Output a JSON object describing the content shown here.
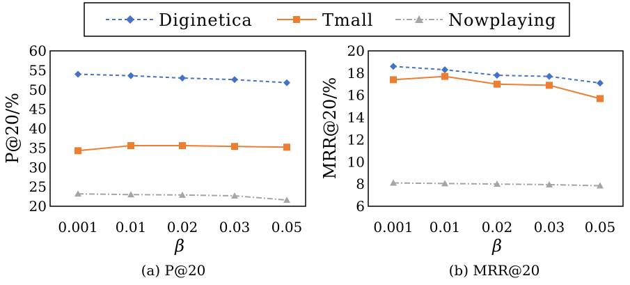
{
  "colors": {
    "diginetica": "#4472C4",
    "tmall": "#ED7D31",
    "nowplaying": "#A5A5A5"
  },
  "legend": {
    "items": [
      "Diginetica",
      "Tmall",
      "Nowplaying"
    ],
    "placement": "top-center"
  },
  "chart_data": [
    {
      "type": "line",
      "subtitle": "(a) P@20",
      "xlabel": "β",
      "ylabel": "P@20/%",
      "categories": [
        "0.001",
        "0.01",
        "0.02",
        "0.03",
        "0.05"
      ],
      "ylim": [
        20,
        60
      ],
      "yticks": [
        "20",
        "25",
        "30",
        "35",
        "40",
        "45",
        "50",
        "55",
        "60"
      ],
      "grid": false,
      "series": [
        {
          "name": "Diginetica",
          "values": [
            54.0,
            53.6,
            53.0,
            52.6,
            51.8
          ]
        },
        {
          "name": "Tmall",
          "values": [
            34.3,
            35.6,
            35.6,
            35.4,
            35.2
          ]
        },
        {
          "name": "Nowplaying",
          "values": [
            23.2,
            23.0,
            22.9,
            22.7,
            21.6
          ]
        }
      ]
    },
    {
      "type": "line",
      "subtitle": "(b) MRR@20",
      "xlabel": "β",
      "ylabel": "MRR@20/%",
      "categories": [
        "0.001",
        "0.01",
        "0.02",
        "0.03",
        "0.05"
      ],
      "ylim": [
        6,
        20
      ],
      "yticks": [
        "6",
        "8",
        "10",
        "12",
        "14",
        "16",
        "18",
        "20"
      ],
      "grid": false,
      "series": [
        {
          "name": "Diginetica",
          "values": [
            18.6,
            18.3,
            17.8,
            17.7,
            17.1
          ]
        },
        {
          "name": "Tmall",
          "values": [
            17.4,
            17.7,
            17.0,
            16.9,
            15.7
          ]
        },
        {
          "name": "Nowplaying",
          "values": [
            8.1,
            8.05,
            8.0,
            7.95,
            7.85
          ]
        }
      ]
    }
  ]
}
